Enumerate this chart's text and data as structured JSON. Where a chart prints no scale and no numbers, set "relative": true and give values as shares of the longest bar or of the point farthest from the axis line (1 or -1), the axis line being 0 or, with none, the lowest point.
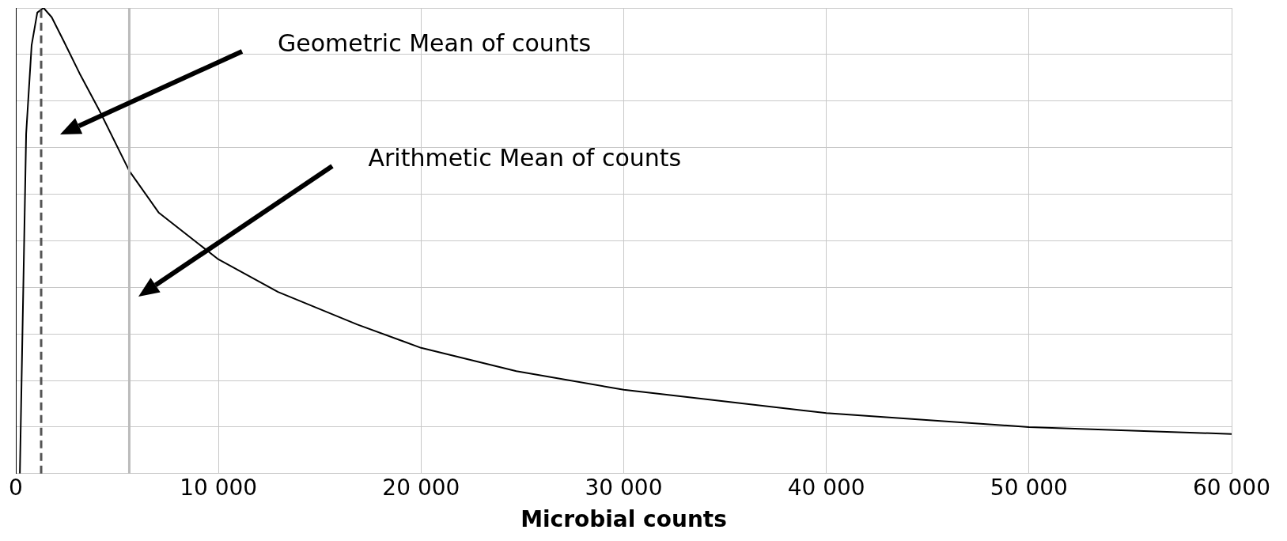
{
  "chart_data": {
    "type": "line",
    "xlabel": "Microbial counts",
    "relative": true,
    "grid": true,
    "marker": "none",
    "line_style": "solid",
    "xlim": [
      0,
      60000
    ],
    "xticks": [
      {
        "value": 0,
        "label": "0"
      },
      {
        "value": 10000,
        "label": "10 000"
      },
      {
        "value": 20000,
        "label": "20 000"
      },
      {
        "value": 30000,
        "label": "30 000"
      },
      {
        "value": 40000,
        "label": "40 000"
      },
      {
        "value": 50000,
        "label": "50 000"
      },
      {
        "value": 60000,
        "label": "60 000"
      }
    ],
    "series": [
      {
        "color": "#000000",
        "x": [
          200,
          310,
          510,
          780,
          1060,
          1370,
          1770,
          2350,
          3140,
          4120,
          5600,
          7060,
          10000,
          12940,
          16860,
          20000,
          24700,
          30000,
          40000,
          50000,
          60000
        ],
        "values": [
          0,
          0.26,
          0.73,
          0.92,
          0.99,
          1,
          0.98,
          0.93,
          0.86,
          0.78,
          0.65,
          0.56,
          0.46,
          0.39,
          0.32,
          0.27,
          0.22,
          0.18,
          0.13,
          0.1,
          0.085
        ]
      }
    ],
    "ref_lines": [
      {
        "axis": "x",
        "value": 1250,
        "color": "#555555",
        "line_style": "dashed"
      },
      {
        "axis": "x",
        "value": 5600,
        "color": "#bbbbbb",
        "line_style": "solid"
      }
    ],
    "annotations": [
      "Geometric Mean of counts",
      "Arithmetic Mean of counts"
    ],
    "legend": false
  }
}
